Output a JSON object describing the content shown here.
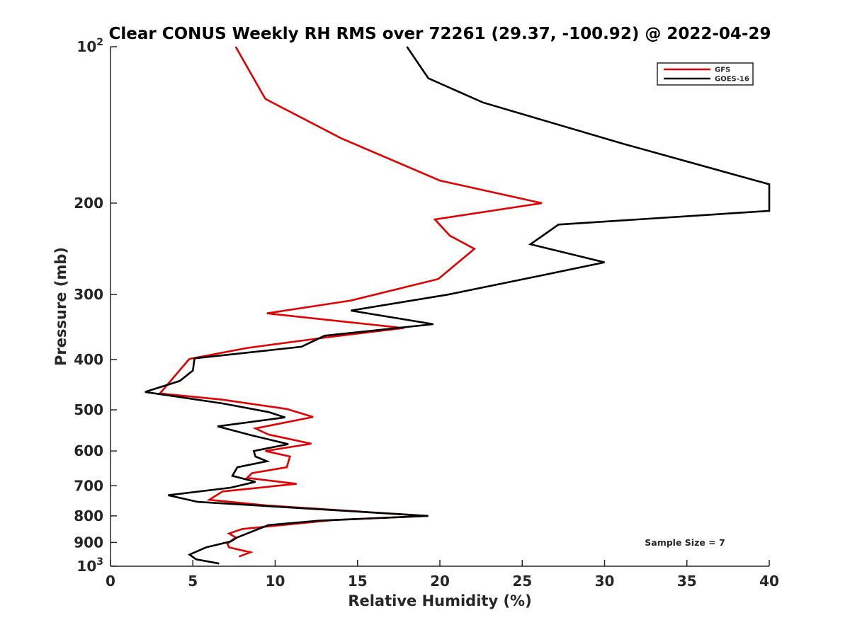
{
  "chart_data": {
    "type": "line",
    "title": "Clear CONUS Weekly RH RMS over 72261 (29.37, -100.92) @ 2022-04-29",
    "xlabel": "Relative Humidity (%)",
    "ylabel": "Pressure (mb)",
    "xlim": [
      0,
      40
    ],
    "ylim": [
      100,
      1000
    ],
    "y_scale": "log",
    "y_reversed": true,
    "grid": false,
    "x_ticks": [
      "0",
      "5",
      "10",
      "15",
      "20",
      "25",
      "30",
      "35",
      "40"
    ],
    "y_ticks": [
      {
        "value": 100,
        "label": "10",
        "sup": "2"
      },
      {
        "value": 200,
        "label": "200",
        "sup": ""
      },
      {
        "value": 300,
        "label": "300",
        "sup": ""
      },
      {
        "value": 400,
        "label": "400",
        "sup": ""
      },
      {
        "value": 500,
        "label": "500",
        "sup": ""
      },
      {
        "value": 600,
        "label": "600",
        "sup": ""
      },
      {
        "value": 700,
        "label": "700",
        "sup": ""
      },
      {
        "value": 800,
        "label": "800",
        "sup": ""
      },
      {
        "value": 900,
        "label": "900",
        "sup": ""
      },
      {
        "value": 1000,
        "label": "10",
        "sup": "3"
      }
    ],
    "legend_position": "top-right",
    "annotation": "Sample Size = 7",
    "series": [
      {
        "name": "GFS",
        "color": "#e00000",
        "points": [
          [
            7.6,
            100
          ],
          [
            9.4,
            126
          ],
          [
            14.0,
            150
          ],
          [
            20.0,
            181
          ],
          [
            26.2,
            200
          ],
          [
            19.7,
            215
          ],
          [
            20.6,
            231
          ],
          [
            22.1,
            245
          ],
          [
            19.9,
            280
          ],
          [
            14.6,
            308
          ],
          [
            9.5,
            326
          ],
          [
            17.8,
            348
          ],
          [
            13.0,
            363
          ],
          [
            8.3,
            380
          ],
          [
            4.8,
            399
          ],
          [
            4.7,
            402
          ],
          [
            3.0,
            465
          ],
          [
            6.8,
            478
          ],
          [
            10.7,
            498
          ],
          [
            12.3,
            516
          ],
          [
            8.8,
            543
          ],
          [
            9.6,
            558
          ],
          [
            12.2,
            581
          ],
          [
            9.4,
            600
          ],
          [
            10.9,
            615
          ],
          [
            10.7,
            645
          ],
          [
            8.6,
            662
          ],
          [
            8.3,
            676
          ],
          [
            11.3,
            694
          ],
          [
            6.8,
            718
          ],
          [
            6.0,
            745
          ],
          [
            9.5,
            764
          ],
          [
            19.2,
            800
          ],
          [
            13.5,
            815
          ],
          [
            8.0,
            848
          ],
          [
            7.2,
            865
          ],
          [
            7.6,
            880
          ],
          [
            7.1,
            905
          ],
          [
            7.2,
            920
          ],
          [
            8.5,
            940
          ],
          [
            7.8,
            958
          ]
        ]
      },
      {
        "name": "GOES-16",
        "color": "#000000",
        "points": [
          [
            18.0,
            100
          ],
          [
            19.3,
            115
          ],
          [
            22.6,
            128
          ],
          [
            31.2,
            154
          ],
          [
            40.0,
            184
          ],
          [
            40.0,
            207
          ],
          [
            27.2,
            220
          ],
          [
            25.5,
            240
          ],
          [
            30.0,
            260
          ],
          [
            25.6,
            278
          ],
          [
            20.5,
            300
          ],
          [
            14.6,
            322
          ],
          [
            19.6,
            342
          ],
          [
            13.0,
            360
          ],
          [
            11.6,
            378
          ],
          [
            5.1,
            398
          ],
          [
            5.0,
            420
          ],
          [
            4.2,
            440
          ],
          [
            2.1,
            462
          ],
          [
            6.8,
            486
          ],
          [
            9.6,
            505
          ],
          [
            10.6,
            517
          ],
          [
            6.5,
            538
          ],
          [
            8.6,
            560
          ],
          [
            10.8,
            582
          ],
          [
            8.7,
            600
          ],
          [
            8.8,
            615
          ],
          [
            9.5,
            628
          ],
          [
            7.7,
            645
          ],
          [
            7.4,
            670
          ],
          [
            8.8,
            688
          ],
          [
            7.3,
            706
          ],
          [
            3.5,
            730
          ],
          [
            5.3,
            752
          ],
          [
            19.3,
            800
          ],
          [
            12.7,
            817
          ],
          [
            9.6,
            833
          ],
          [
            7.7,
            880
          ],
          [
            7.3,
            896
          ],
          [
            5.8,
            920
          ],
          [
            4.8,
            950
          ],
          [
            5.2,
            970
          ],
          [
            6.6,
            988
          ]
        ]
      }
    ]
  }
}
